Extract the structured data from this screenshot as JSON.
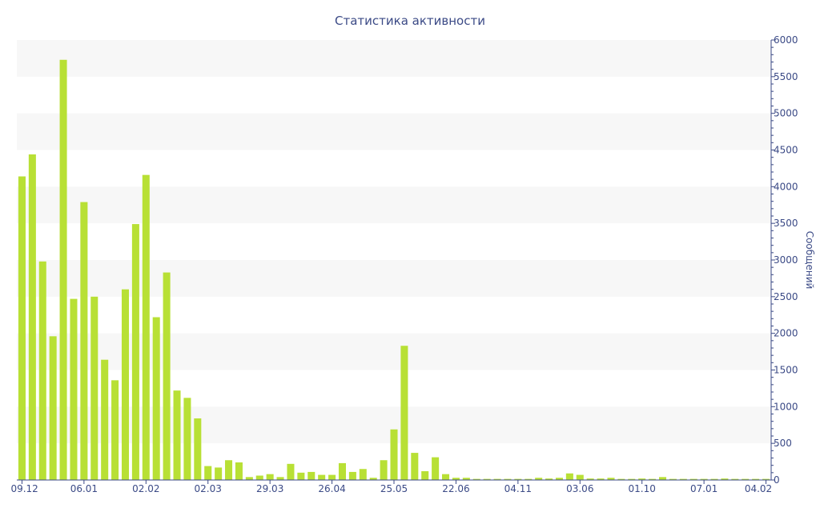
{
  "chart_data": {
    "type": "bar",
    "title": "Статистика активности",
    "xlabel": "",
    "ylabel": "Сообщений",
    "y_axis_side": "right",
    "ylim": [
      0,
      6000
    ],
    "yticks": [
      0,
      500,
      1000,
      1500,
      2000,
      2500,
      3000,
      3500,
      4000,
      4500,
      5000,
      5500,
      6000
    ],
    "x_tick_labels": [
      {
        "label": "09.12",
        "index": 0
      },
      {
        "label": "06.01",
        "index": 6
      },
      {
        "label": "02.02",
        "index": 12
      },
      {
        "label": "02.03",
        "index": 18
      },
      {
        "label": "29.03",
        "index": 24
      },
      {
        "label": "26.04",
        "index": 30
      },
      {
        "label": "25.05",
        "index": 36
      },
      {
        "label": "22.06",
        "index": 42
      },
      {
        "label": "04.11",
        "index": 48
      },
      {
        "label": "03.06",
        "index": 54
      },
      {
        "label": "01.10",
        "index": 60
      },
      {
        "label": "07.01",
        "index": 66
      },
      {
        "label": "04.02",
        "index": 72
      }
    ],
    "bar_color": "#b8e035",
    "grid_band_color": "#f7f7f7",
    "axis_color": "#3b4a86",
    "values": [
      4140,
      4440,
      2980,
      1960,
      5730,
      2470,
      3790,
      2500,
      1640,
      1360,
      2600,
      3490,
      4160,
      2220,
      2830,
      1220,
      1120,
      840,
      190,
      170,
      270,
      240,
      40,
      60,
      80,
      40,
      220,
      100,
      110,
      70,
      70,
      230,
      110,
      150,
      30,
      270,
      690,
      1830,
      370,
      120,
      310,
      80,
      30,
      30,
      15,
      15,
      15,
      15,
      15,
      15,
      30,
      20,
      30,
      90,
      70,
      20,
      20,
      30,
      15,
      15,
      20,
      15,
      40,
      15,
      15,
      15,
      15,
      15,
      20,
      15,
      15,
      15,
      15
    ]
  }
}
